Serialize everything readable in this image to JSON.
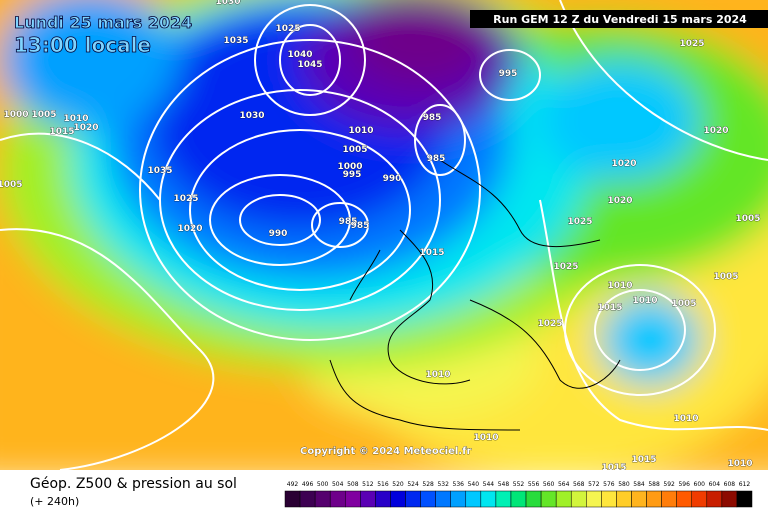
{
  "header": {
    "date": "Lundi 25 mars 2024",
    "time": "13:00 locale",
    "run": "Run GEM 12 Z du Vendredi 15 mars 2024"
  },
  "copyright": "Copyright © 2024 Meteociel.fr",
  "footer": {
    "title": "Géop. Z500 & pression au sol",
    "lead": "(+ 240h)"
  },
  "legend": {
    "values": [
      492,
      496,
      500,
      504,
      508,
      512,
      516,
      520,
      524,
      528,
      532,
      536,
      540,
      544,
      548,
      552,
      556,
      560,
      564,
      568,
      572,
      576,
      580,
      584,
      588,
      592,
      596,
      600,
      604,
      608,
      612
    ],
    "colors": [
      "#2a0033",
      "#3d0052",
      "#55006e",
      "#6e008a",
      "#8000a0",
      "#5a00b4",
      "#2800c8",
      "#0000dc",
      "#0028f0",
      "#0050ff",
      "#0078ff",
      "#00a0ff",
      "#00c8ff",
      "#00e6f0",
      "#00f0b4",
      "#00e678",
      "#28dc3c",
      "#64e628",
      "#a0f028",
      "#d2f53c",
      "#f5f550",
      "#ffe63c",
      "#ffcd28",
      "#ffb41e",
      "#ff9b14",
      "#ff7d0a",
      "#ff5a00",
      "#f03c00",
      "#c81e00",
      "#8c0a00",
      "#000000"
    ]
  },
  "isobar_labels": [
    "1030",
    "1035",
    "1025",
    "1040",
    "1045",
    "1000",
    "1005",
    "1010",
    "1015",
    "1020",
    "1005",
    "1035",
    "1030",
    "1025",
    "1020",
    "990",
    "985",
    "985",
    "1010",
    "1005",
    "1000",
    "995",
    "990",
    "985",
    "985",
    "995",
    "1025",
    "1020",
    "1020",
    "1020",
    "1025",
    "1005",
    "1025",
    "1010",
    "1010",
    "1015",
    "1005",
    "1005",
    "1025",
    "1015",
    "1010",
    "1010",
    "1010",
    "1015",
    "1015",
    "1010"
  ]
}
